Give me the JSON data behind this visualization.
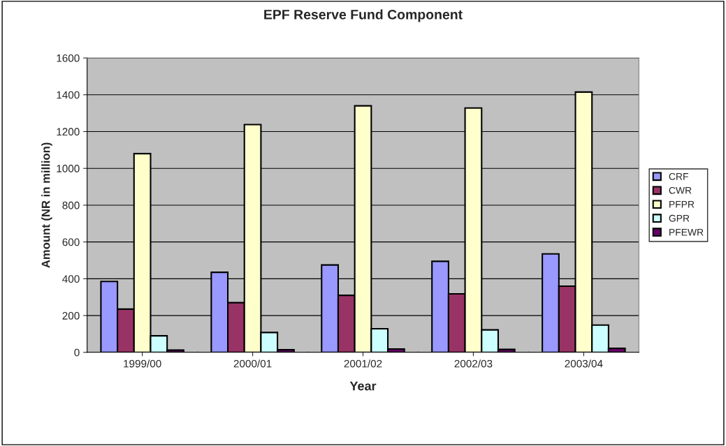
{
  "chart_data": {
    "type": "bar",
    "title": "EPF Reserve Fund Component",
    "xlabel": "Year",
    "ylabel": "Amount (NR in million)",
    "categories": [
      "1999/00",
      "2000/01",
      "2001/02",
      "2002/03",
      "2003/04"
    ],
    "series": [
      {
        "name": "CRF",
        "color": "#9999ff",
        "values": [
          385,
          435,
          475,
          495,
          535
        ]
      },
      {
        "name": "CWR",
        "color": "#993366",
        "values": [
          235,
          270,
          310,
          318,
          360
        ]
      },
      {
        "name": "PFPR",
        "color": "#ffffcc",
        "values": [
          1080,
          1238,
          1340,
          1328,
          1415
        ]
      },
      {
        "name": "GPR",
        "color": "#ccffff",
        "values": [
          90,
          108,
          128,
          122,
          148
        ]
      },
      {
        "name": "PFEWR",
        "color": "#660066",
        "values": [
          12,
          14,
          18,
          16,
          22
        ]
      }
    ],
    "ylim": [
      0,
      1600
    ],
    "yticks": [
      0,
      200,
      400,
      600,
      800,
      1000,
      1200,
      1400,
      1600
    ],
    "grid": "y",
    "legend": "right"
  }
}
